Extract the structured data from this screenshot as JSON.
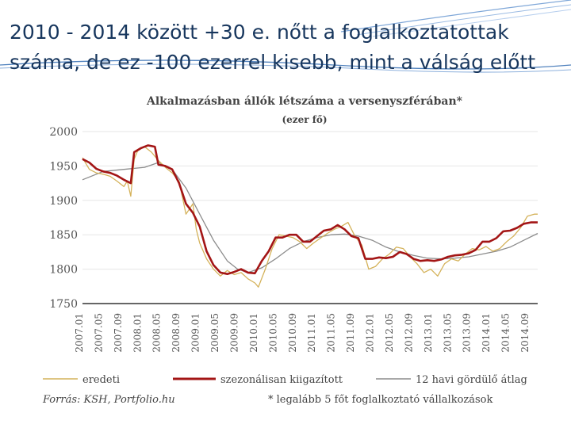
{
  "slide": {
    "title_line1": "2010 - 2014 között +30 e. nőtt a foglalkoztatottak",
    "title_line2": "száma, de ez -100 ezerrel kisebb, mint a válság előtt"
  },
  "colors": {
    "accent": "#4f81bd",
    "title": "#17365d",
    "original": "#d4b25a",
    "seasonal": "#a31515",
    "rolling": "#8c8c8c"
  },
  "chart_data": {
    "type": "line",
    "title": "Alkalmazásban állók létszáma a versenyszférában*",
    "subtitle": "(ezer fő)",
    "ylim": [
      1750,
      2000
    ],
    "yticks": [
      2000,
      1950,
      1900,
      1850,
      1800,
      1750
    ],
    "x_tick_labels": [
      "2007.01",
      "2007.05",
      "2007.09",
      "2008.01",
      "2008.05",
      "2008.09",
      "2009.01",
      "2009.05",
      "2009.09",
      "2010.01",
      "2010.05",
      "2010.09",
      "2011.01",
      "2011.05",
      "2011.09",
      "2012.01",
      "2012.05",
      "2012.09",
      "2013.01",
      "2013.05",
      "2013.09",
      "2014.01",
      "2014.05",
      "2014.09"
    ],
    "x_month_count": 93,
    "series": [
      {
        "name": "eredeti",
        "key": "original",
        "style": "thin",
        "anchors": [
          [
            0,
            1962
          ],
          [
            2,
            1945
          ],
          [
            4,
            1940
          ],
          [
            6,
            1938
          ],
          [
            8,
            1935
          ],
          [
            10,
            1928
          ],
          [
            12,
            1920
          ],
          [
            13,
            1928
          ],
          [
            14,
            1906
          ],
          [
            15,
            1960
          ],
          [
            16,
            1972
          ],
          [
            18,
            1978
          ],
          [
            20,
            1970
          ],
          [
            22,
            1958
          ],
          [
            24,
            1948
          ],
          [
            26,
            1940
          ],
          [
            28,
            1928
          ],
          [
            30,
            1880
          ],
          [
            32,
            1895
          ],
          [
            33,
            1858
          ],
          [
            34,
            1838
          ],
          [
            36,
            1815
          ],
          [
            38,
            1800
          ],
          [
            40,
            1790
          ],
          [
            42,
            1798
          ],
          [
            44,
            1792
          ],
          [
            46,
            1795
          ],
          [
            48,
            1786
          ],
          [
            50,
            1780
          ],
          [
            51,
            1774
          ],
          [
            53,
            1800
          ],
          [
            55,
            1830
          ],
          [
            57,
            1850
          ],
          [
            59,
            1848
          ],
          [
            61,
            1846
          ],
          [
            63,
            1840
          ],
          [
            65,
            1830
          ],
          [
            67,
            1838
          ],
          [
            69,
            1845
          ],
          [
            71,
            1852
          ],
          [
            73,
            1858
          ],
          [
            75,
            1862
          ],
          [
            77,
            1868
          ],
          [
            79,
            1848
          ],
          [
            81,
            1835
          ],
          [
            83,
            1800
          ],
          [
            85,
            1804
          ],
          [
            87,
            1815
          ],
          [
            89,
            1822
          ],
          [
            91,
            1832
          ],
          [
            93,
            1830
          ],
          [
            95,
            1818
          ],
          [
            97,
            1808
          ],
          [
            99,
            1795
          ],
          [
            101,
            1800
          ],
          [
            103,
            1790
          ],
          [
            105,
            1808
          ],
          [
            107,
            1815
          ],
          [
            109,
            1812
          ],
          [
            111,
            1822
          ],
          [
            113,
            1830
          ],
          [
            115,
            1828
          ],
          [
            117,
            1833
          ],
          [
            119,
            1826
          ],
          [
            121,
            1830
          ],
          [
            123,
            1840
          ],
          [
            125,
            1848
          ],
          [
            127,
            1860
          ],
          [
            129,
            1877
          ],
          [
            131,
            1880
          ],
          [
            132,
            1880
          ]
        ]
      },
      {
        "name": "szezonálisan kiigazított",
        "key": "seasonal",
        "style": "thick",
        "anchors": [
          [
            0,
            1960
          ],
          [
            2,
            1955
          ],
          [
            4,
            1946
          ],
          [
            6,
            1942
          ],
          [
            8,
            1940
          ],
          [
            10,
            1936
          ],
          [
            12,
            1930
          ],
          [
            14,
            1925
          ],
          [
            15,
            1970
          ],
          [
            17,
            1976
          ],
          [
            19,
            1980
          ],
          [
            21,
            1978
          ],
          [
            22,
            1952
          ],
          [
            24,
            1950
          ],
          [
            26,
            1945
          ],
          [
            28,
            1925
          ],
          [
            30,
            1895
          ],
          [
            32,
            1882
          ],
          [
            34,
            1862
          ],
          [
            36,
            1826
          ],
          [
            38,
            1806
          ],
          [
            40,
            1795
          ],
          [
            42,
            1793
          ],
          [
            44,
            1796
          ],
          [
            46,
            1800
          ],
          [
            48,
            1795
          ],
          [
            50,
            1794
          ],
          [
            52,
            1812
          ],
          [
            54,
            1826
          ],
          [
            56,
            1846
          ],
          [
            58,
            1846
          ],
          [
            60,
            1850
          ],
          [
            62,
            1850
          ],
          [
            64,
            1840
          ],
          [
            66,
            1840
          ],
          [
            68,
            1848
          ],
          [
            70,
            1856
          ],
          [
            72,
            1858
          ],
          [
            74,
            1864
          ],
          [
            76,
            1858
          ],
          [
            78,
            1848
          ],
          [
            80,
            1845
          ],
          [
            82,
            1815
          ],
          [
            84,
            1815
          ],
          [
            86,
            1817
          ],
          [
            88,
            1816
          ],
          [
            90,
            1818
          ],
          [
            92,
            1825
          ],
          [
            94,
            1822
          ],
          [
            96,
            1815
          ],
          [
            98,
            1812
          ],
          [
            100,
            1813
          ],
          [
            102,
            1812
          ],
          [
            104,
            1814
          ],
          [
            106,
            1818
          ],
          [
            108,
            1820
          ],
          [
            110,
            1821
          ],
          [
            112,
            1823
          ],
          [
            114,
            1828
          ],
          [
            116,
            1840
          ],
          [
            118,
            1840
          ],
          [
            120,
            1845
          ],
          [
            122,
            1855
          ],
          [
            124,
            1856
          ],
          [
            126,
            1860
          ],
          [
            128,
            1866
          ],
          [
            130,
            1868
          ],
          [
            132,
            1868
          ]
        ]
      },
      {
        "name": "12 havi gördülő átlag",
        "key": "rolling",
        "style": "thin",
        "anchors": [
          [
            0,
            1930
          ],
          [
            6,
            1942
          ],
          [
            12,
            1945
          ],
          [
            18,
            1948
          ],
          [
            22,
            1955
          ],
          [
            26,
            1945
          ],
          [
            30,
            1918
          ],
          [
            34,
            1880
          ],
          [
            38,
            1842
          ],
          [
            42,
            1812
          ],
          [
            45,
            1800
          ],
          [
            48,
            1795
          ],
          [
            52,
            1802
          ],
          [
            56,
            1815
          ],
          [
            60,
            1830
          ],
          [
            64,
            1840
          ],
          [
            68,
            1846
          ],
          [
            72,
            1850
          ],
          [
            76,
            1851
          ],
          [
            80,
            1848
          ],
          [
            84,
            1842
          ],
          [
            88,
            1832
          ],
          [
            92,
            1825
          ],
          [
            96,
            1820
          ],
          [
            100,
            1816
          ],
          [
            104,
            1815
          ],
          [
            108,
            1816
          ],
          [
            112,
            1818
          ],
          [
            116,
            1822
          ],
          [
            120,
            1826
          ],
          [
            124,
            1832
          ],
          [
            128,
            1842
          ],
          [
            132,
            1852
          ]
        ]
      }
    ],
    "legend": [
      "eredeti",
      "szezonálisan kiigazított",
      "12 havi gördülő átlag"
    ],
    "source": "Forrás: KSH, Portfolio.hu",
    "footnote": "* legalább 5 főt foglalkoztató vállalkozások"
  }
}
